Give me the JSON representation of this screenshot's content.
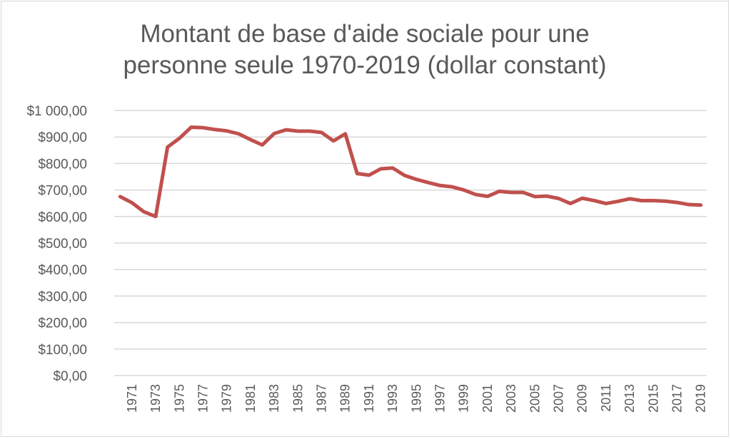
{
  "chart_data": {
    "type": "line",
    "title_lines": [
      "Montant de base d'aide sociale pour une",
      "personne seule 1970-2019 (dollar constant)"
    ],
    "xlabel": "",
    "ylabel": "",
    "ylim": [
      0,
      1000
    ],
    "y_ticks": [
      "$0,00",
      "$100,00",
      "$200,00",
      "$300,00",
      "$400,00",
      "$500,00",
      "$600,00",
      "$700,00",
      "$800,00",
      "$900,00",
      "$1 000,00"
    ],
    "x_tick_labels": [
      "1971",
      "1973",
      "1975",
      "1977",
      "1979",
      "1981",
      "1983",
      "1985",
      "1987",
      "1989",
      "1991",
      "1993",
      "1995",
      "1997",
      "1999",
      "2001",
      "2003",
      "2005",
      "2007",
      "2009",
      "2011",
      "2013",
      "2015",
      "2017",
      "2019"
    ],
    "grid": true,
    "legend": "none",
    "colors": {
      "line": "#c0504d",
      "grid": "#d9d9d9",
      "text": "#595959"
    },
    "x": [
      1970,
      1971,
      1972,
      1973,
      1974,
      1975,
      1976,
      1977,
      1978,
      1979,
      1980,
      1981,
      1982,
      1983,
      1984,
      1985,
      1986,
      1987,
      1988,
      1989,
      1990,
      1991,
      1992,
      1993,
      1994,
      1995,
      1996,
      1997,
      1998,
      1999,
      2000,
      2001,
      2002,
      2003,
      2004,
      2005,
      2006,
      2007,
      2008,
      2009,
      2010,
      2011,
      2012,
      2013,
      2014,
      2015,
      2016,
      2017,
      2018,
      2019
    ],
    "values": [
      675,
      652,
      618,
      600,
      862,
      895,
      937,
      935,
      928,
      923,
      912,
      890,
      870,
      913,
      927,
      922,
      922,
      917,
      885,
      912,
      762,
      756,
      780,
      783,
      755,
      740,
      728,
      717,
      712,
      700,
      683,
      676,
      695,
      691,
      691,
      675,
      677,
      668,
      649,
      669,
      660,
      649,
      657,
      667,
      660,
      660,
      658,
      653,
      645,
      643
    ]
  }
}
